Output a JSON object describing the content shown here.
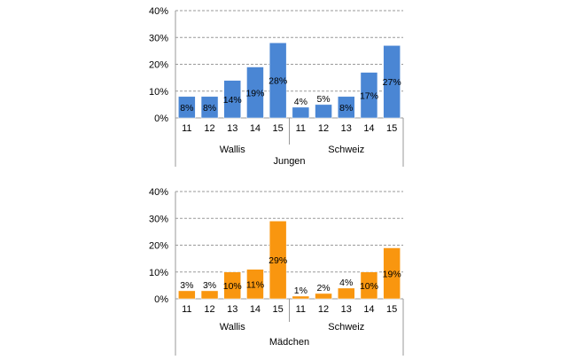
{
  "chart_data": [
    {
      "type": "bar",
      "title": "",
      "ylabel": "",
      "xlabel": "Jungen",
      "ylim": [
        0,
        40
      ],
      "yticks": [
        "0%",
        "10%",
        "20%",
        "30%",
        "40%"
      ],
      "grid": true,
      "groups": [
        {
          "label": "Wallis",
          "categories": [
            "11",
            "12",
            "13",
            "14",
            "15"
          ],
          "values": [
            8,
            8,
            14,
            19,
            28
          ],
          "labels": [
            "8%",
            "8%",
            "14%",
            "19%",
            "28%"
          ]
        },
        {
          "label": "Schweiz",
          "categories": [
            "11",
            "12",
            "13",
            "14",
            "15"
          ],
          "values": [
            4,
            5,
            8,
            17,
            27
          ],
          "labels": [
            "4%",
            "5%",
            "8%",
            "17%",
            "27%"
          ]
        }
      ],
      "color": "#4a86d4"
    },
    {
      "type": "bar",
      "title": "",
      "ylabel": "",
      "xlabel": "Mädchen",
      "ylim": [
        0,
        40
      ],
      "yticks": [
        "0%",
        "10%",
        "20%",
        "30%",
        "40%"
      ],
      "grid": true,
      "groups": [
        {
          "label": "Wallis",
          "categories": [
            "11",
            "12",
            "13",
            "14",
            "15"
          ],
          "values": [
            3,
            3,
            10,
            11,
            29
          ],
          "labels": [
            "3%",
            "3%",
            "10%",
            "11%",
            "29%"
          ]
        },
        {
          "label": "Schweiz",
          "categories": [
            "11",
            "12",
            "13",
            "14",
            "15"
          ],
          "values": [
            1,
            2,
            4,
            10,
            19
          ],
          "labels": [
            "1%",
            "2%",
            "4%",
            "10%",
            "19%"
          ]
        }
      ],
      "color": "#f9960f"
    }
  ]
}
